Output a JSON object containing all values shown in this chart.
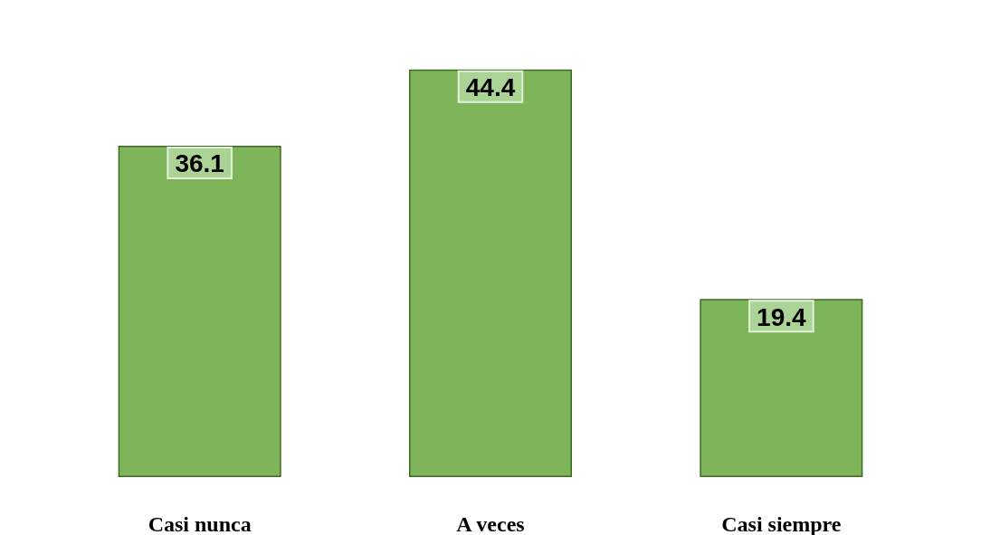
{
  "chart_data": {
    "type": "bar",
    "categories": [
      "Casi nunca",
      "A veces",
      "Casi siempre"
    ],
    "values": [
      36.1,
      44.4,
      19.4
    ],
    "color": "#7fb55a",
    "data_labels": true
  }
}
